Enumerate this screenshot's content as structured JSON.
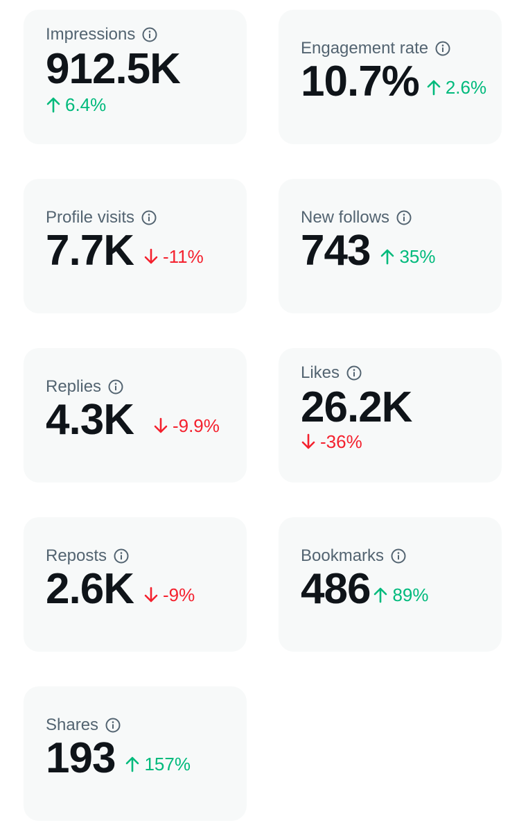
{
  "colors": {
    "card_bg": "#f7f9f9",
    "label": "#536471",
    "value": "#0f1419",
    "up": "#00ba7c",
    "down": "#f4212e"
  },
  "metrics": [
    {
      "label": "Impressions",
      "value": "912.5K",
      "delta": "6.4%",
      "direction": "up",
      "icon": "info-icon"
    },
    {
      "label": "Engagement rate",
      "value": "10.7%",
      "delta": "2.6%",
      "direction": "up",
      "icon": "info-icon"
    },
    {
      "label": "Profile visits",
      "value": "7.7K",
      "delta": "-11%",
      "direction": "down",
      "icon": "info-icon"
    },
    {
      "label": "New follows",
      "value": "743",
      "delta": "35%",
      "direction": "up",
      "icon": "info-icon"
    },
    {
      "label": "Replies",
      "value": "4.3K",
      "delta": "-9.9%",
      "direction": "down",
      "icon": "info-icon"
    },
    {
      "label": "Likes",
      "value": "26.2K",
      "delta": "-36%",
      "direction": "down",
      "icon": "info-icon"
    },
    {
      "label": "Reposts",
      "value": "2.6K",
      "delta": "-9%",
      "direction": "down",
      "icon": "info-icon"
    },
    {
      "label": "Bookmarks",
      "value": "486",
      "delta": "89%",
      "direction": "up",
      "icon": "info-icon"
    },
    {
      "label": "Shares",
      "value": "193",
      "delta": "157%",
      "direction": "up",
      "icon": "info-icon"
    }
  ]
}
